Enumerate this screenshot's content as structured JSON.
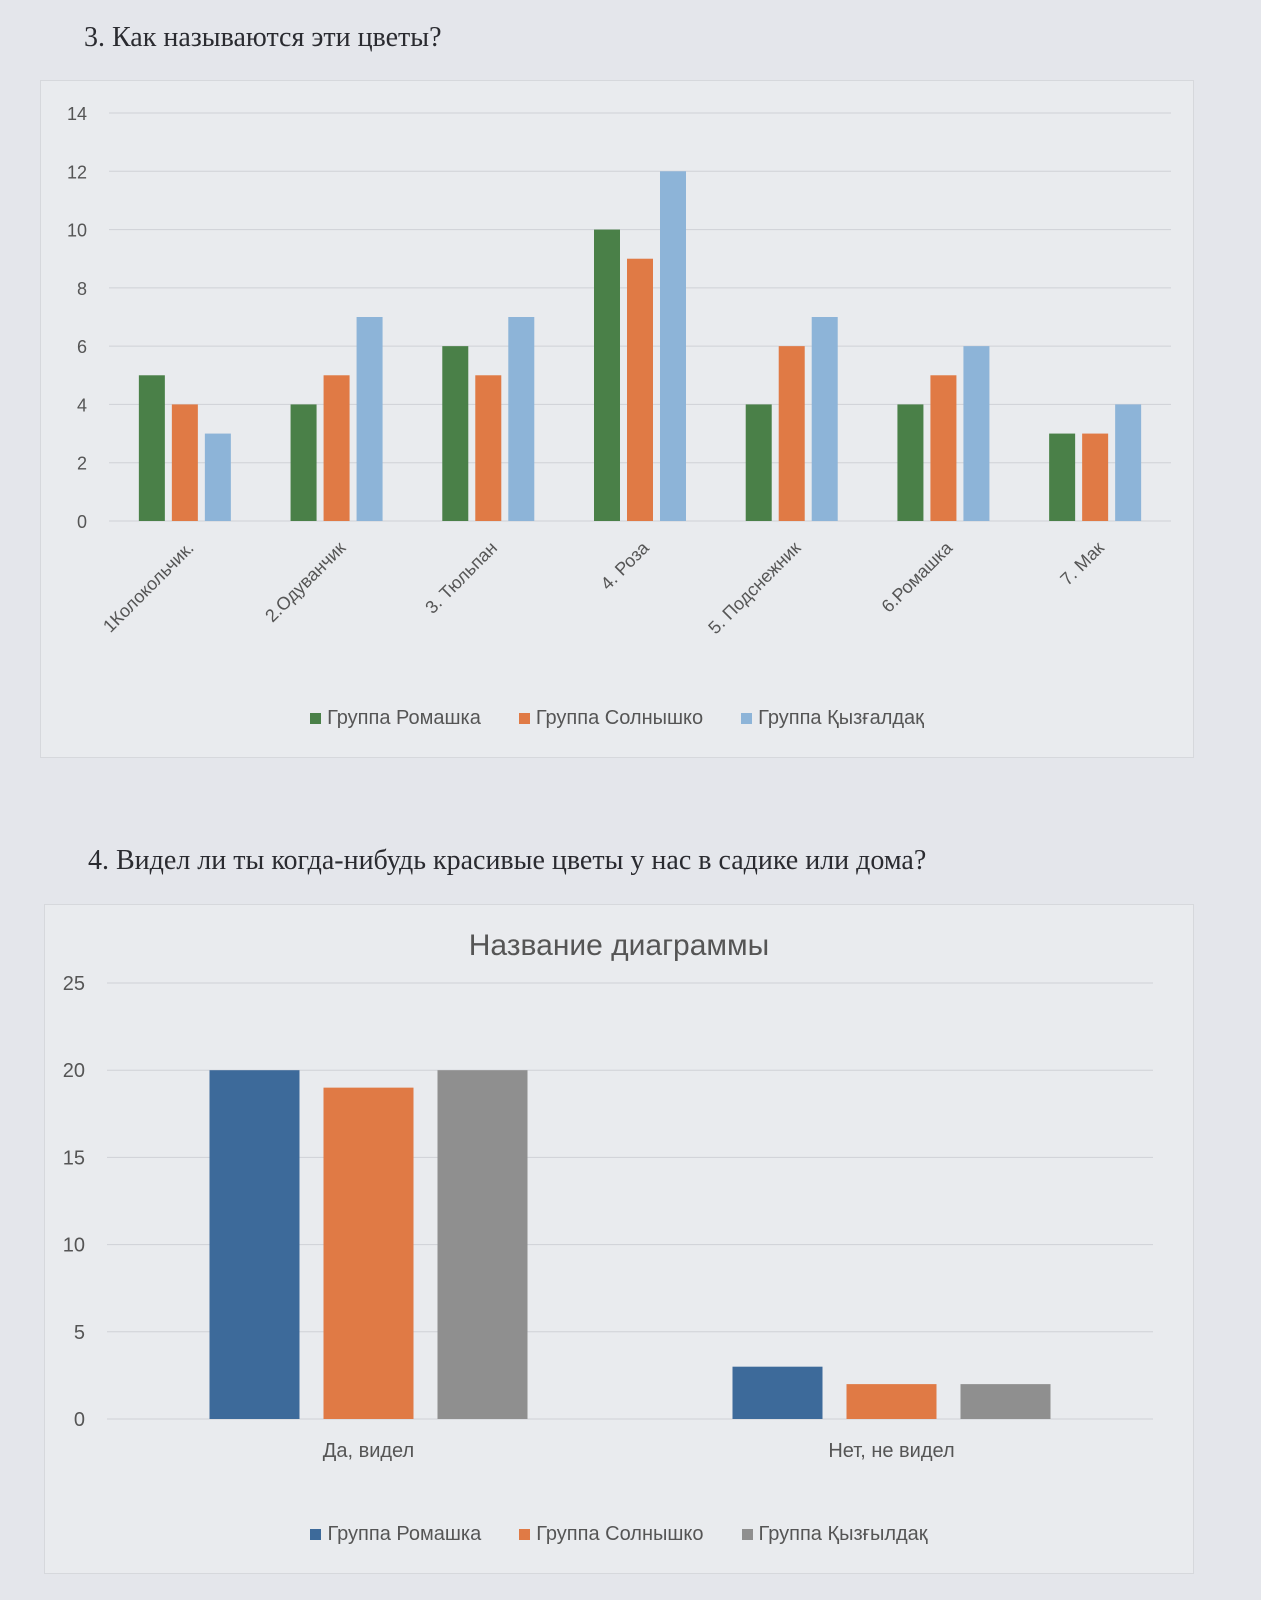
{
  "questions": {
    "q3": "3.   Как называются эти цветы?",
    "q4": "4.   Видел ли ты когда-нибудь красивые цветы у нас в садике или дома?"
  },
  "chart_data": [
    {
      "type": "bar",
      "title": "",
      "categories": [
        "1Колокольчик.",
        "2.Одуванчик",
        "3. Тюльпан",
        "4. Роза",
        "5. Подснежник",
        "6.Ромашка",
        "7. Мак"
      ],
      "series": [
        {
          "name": "Группа Ромашка",
          "color": "#4a8048",
          "values": [
            5,
            4,
            6,
            10,
            4,
            4,
            3
          ]
        },
        {
          "name": "Группа Солнышко",
          "color": "#e07a45",
          "values": [
            4,
            5,
            5,
            9,
            6,
            5,
            3
          ]
        },
        {
          "name": "Группа Қызғалдақ",
          "color": "#8db4d8",
          "values": [
            3,
            7,
            7,
            12,
            7,
            6,
            4
          ]
        }
      ],
      "ylim": [
        0,
        14
      ],
      "yticks": [
        "0",
        "2",
        "4",
        "6",
        "8",
        "10",
        "12",
        "14"
      ],
      "grid": true,
      "legend": "bottom"
    },
    {
      "type": "bar",
      "title": "Название диаграммы",
      "categories": [
        "Да, видел",
        "Нет, не видел"
      ],
      "series": [
        {
          "name": "Группа Ромашка",
          "color": "#3d6a9a",
          "values": [
            20,
            3
          ]
        },
        {
          "name": "Группа Солнышко",
          "color": "#e07a45",
          "values": [
            19,
            2
          ]
        },
        {
          "name": "Группа Қызғылдақ",
          "color": "#8f8f8f",
          "values": [
            20,
            2
          ]
        }
      ],
      "ylim": [
        0,
        25
      ],
      "yticks": [
        "0",
        "5",
        "10",
        "15",
        "20",
        "25"
      ],
      "grid": true,
      "legend": "bottom"
    }
  ]
}
